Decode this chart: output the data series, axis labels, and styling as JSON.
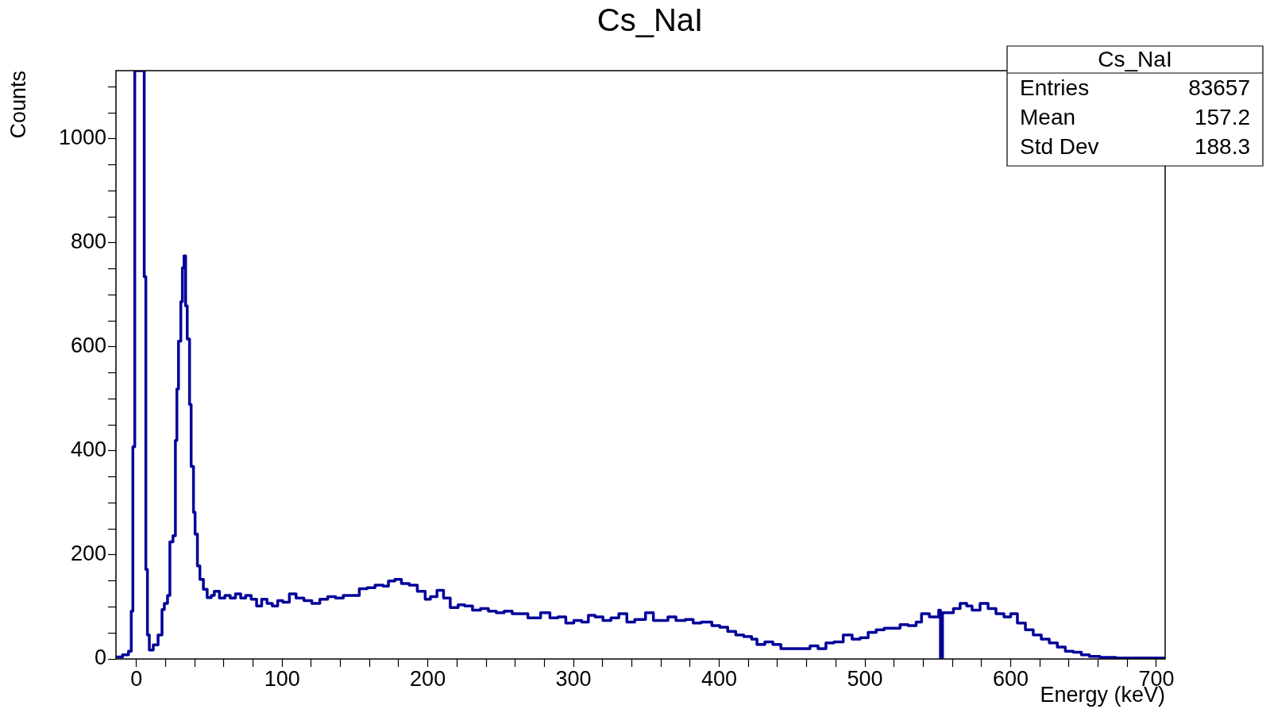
{
  "chart_data": {
    "type": "histogram",
    "title": "Cs_NaI",
    "xlabel": "Energy (keV)",
    "ylabel": "Counts",
    "color": "#000099",
    "legend": false,
    "grid": false,
    "bins": [
      -14,
      -9.5,
      -5.4,
      -3.5,
      -2.4,
      -1.1,
      5.4,
      6.5,
      7.6,
      8.9,
      11.6,
      14.9,
      17.6,
      19.2,
      21.4,
      23,
      25.1,
      26.8,
      27.8,
      28.9,
      30.5,
      31.6,
      32.7,
      33.8,
      34.9,
      36.5,
      37.6,
      39.2,
      40.3,
      41.9,
      43.6,
      46,
      48.6,
      51.4,
      53.5,
      57,
      60.8,
      64.4,
      68,
      71.6,
      75,
      78.8,
      82.5,
      86,
      89.7,
      93.3,
      97,
      100.5,
      105,
      109.6,
      115,
      120.4,
      125.9,
      131.3,
      136.7,
      142,
      147.6,
      153,
      158.4,
      163.8,
      169.3,
      173,
      177.4,
      181.9,
      187.3,
      192.8,
      198.2,
      201.8,
      206.3,
      210.8,
      215.4,
      220.8,
      225.3,
      230.7,
      236.2,
      241.6,
      247,
      252.4,
      257.9,
      263.3,
      268.7,
      277.4,
      283.8,
      289.3,
      294.7,
      300.2,
      305.6,
      310.2,
      314.8,
      320.2,
      325.7,
      331.1,
      336.6,
      342,
      349.4,
      354.8,
      360.3,
      364.8,
      370.3,
      376.7,
      382.1,
      387.6,
      394.9,
      400.4,
      405.8,
      411.3,
      416.8,
      422.2,
      425.9,
      431.3,
      436.8,
      442.3,
      447.7,
      453.2,
      458.7,
      462.3,
      467.8,
      473.2,
      478.7,
      485.1,
      491.2,
      496.7,
      502.2,
      507.7,
      513.2,
      518.6,
      524.1,
      529.6,
      535.1,
      538.8,
      544.2,
      550.6,
      551.8,
      553.2,
      560.7,
      565.3,
      569.8,
      573.5,
      579,
      584.5,
      589.9,
      595.4,
      600,
      604.6,
      610.1,
      615.5,
      621,
      626.5,
      632,
      637.5,
      643,
      648.5,
      654,
      661.2,
      672.2,
      688.7,
      706
    ],
    "values": [
      4,
      8,
      15,
      92,
      408,
      1131,
      735,
      172,
      46,
      17,
      27,
      46,
      95,
      107,
      122,
      225,
      237,
      420,
      519,
      611,
      687,
      752,
      775,
      679,
      615,
      489,
      370,
      282,
      240,
      179,
      153,
      134,
      118,
      122,
      130,
      117,
      122,
      117,
      125,
      117,
      122,
      115,
      102,
      115,
      107,
      102,
      112,
      109,
      125,
      117,
      112,
      107,
      115,
      120,
      117,
      122,
      122,
      135,
      137,
      142,
      140,
      150,
      153,
      145,
      142,
      130,
      115,
      120,
      132,
      117,
      99,
      104,
      102,
      94,
      97,
      92,
      89,
      92,
      87,
      87,
      79,
      89,
      79,
      81,
      69,
      74,
      71,
      84,
      81,
      74,
      79,
      87,
      71,
      76,
      89,
      74,
      74,
      81,
      74,
      76,
      69,
      71,
      64,
      61,
      53,
      46,
      43,
      38,
      28,
      33,
      28,
      20,
      20,
      20,
      20,
      25,
      20,
      31,
      33,
      46,
      38,
      41,
      51,
      56,
      59,
      59,
      66,
      64,
      71,
      87,
      81,
      94,
      0,
      89,
      97,
      107,
      102,
      94,
      107,
      97,
      87,
      81,
      87,
      69,
      56,
      46,
      38,
      31,
      23,
      15,
      13,
      8,
      5,
      3,
      2,
      2
    ],
    "xlim": [
      -14,
      706
    ],
    "ylim": [
      0,
      1131
    ],
    "xticks": [
      0,
      {
        "value": 20,
        "label": null
      },
      {
        "value": 40,
        "label": null
      },
      {
        "value": 60,
        "label": null
      },
      {
        "value": 80,
        "label": null
      },
      100,
      {
        "value": 120,
        "label": null
      },
      {
        "value": 140,
        "label": null
      },
      {
        "value": 160,
        "label": null
      },
      {
        "value": 180,
        "label": null
      },
      200,
      {
        "value": 220,
        "label": null
      },
      {
        "value": 240,
        "label": null
      },
      {
        "value": 260,
        "label": null
      },
      {
        "value": 280,
        "label": null
      },
      300,
      {
        "value": 320,
        "label": null
      },
      {
        "value": 340,
        "label": null
      },
      {
        "value": 360,
        "label": null
      },
      {
        "value": 380,
        "label": null
      },
      400,
      {
        "value": 420,
        "label": null
      },
      {
        "value": 440,
        "label": null
      },
      {
        "value": 460,
        "label": null
      },
      {
        "value": 480,
        "label": null
      },
      500,
      {
        "value": 520,
        "label": null
      },
      {
        "value": 540,
        "label": null
      },
      {
        "value": 560,
        "label": null
      },
      {
        "value": 580,
        "label": null
      },
      600,
      {
        "value": 620,
        "label": null
      },
      {
        "value": 640,
        "label": null
      },
      {
        "value": 660,
        "label": null
      },
      {
        "value": 680,
        "label": null
      },
      700
    ],
    "yticks": [
      0,
      {
        "value": 50,
        "label": null
      },
      {
        "value": 100,
        "label": null
      },
      {
        "value": 150,
        "label": null
      },
      200,
      {
        "value": 250,
        "label": null
      },
      {
        "value": 300,
        "label": null
      },
      {
        "value": 350,
        "label": null
      },
      400,
      {
        "value": 450,
        "label": null
      },
      {
        "value": 500,
        "label": null
      },
      {
        "value": 550,
        "label": null
      },
      600,
      {
        "value": 650,
        "label": null
      },
      {
        "value": 700,
        "label": null
      },
      {
        "value": 750,
        "label": null
      },
      800,
      {
        "value": 850,
        "label": null
      },
      {
        "value": 900,
        "label": null
      },
      {
        "value": 950,
        "label": null
      },
      1000,
      {
        "value": 1050,
        "label": null
      },
      {
        "value": 1100,
        "label": null
      }
    ],
    "annotations": [
      "Cs_NaI",
      "Entries 83657",
      "Mean 157.2",
      "Std Dev 188.3"
    ]
  }
}
